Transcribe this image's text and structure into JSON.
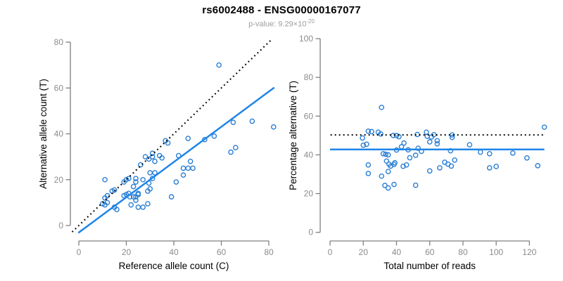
{
  "header": {
    "title": "rs6002488 - ENSG00000167077",
    "subtitle_prefix": "p-value: 9.29×10",
    "subtitle_exponent": "-20"
  },
  "colors": {
    "point": "#2b7fd4",
    "line": "#1f86e8",
    "identity": "#000000",
    "axis": "#808080",
    "tick_label": "#8c8c8c",
    "axis_title": "#000000",
    "title": "#000000",
    "subtitle": "#9c9c9c",
    "background": "#ffffff"
  },
  "chart_data": [
    {
      "type": "scatter",
      "name": "allele-count-scatter",
      "xlabel": "Reference allele count (C)",
      "ylabel": "Alternative allele count (T)",
      "xlim": [
        0,
        82
      ],
      "ylim": [
        0,
        82
      ],
      "xticks": [
        0,
        20,
        40,
        60,
        80
      ],
      "yticks": [
        0,
        20,
        40,
        60,
        80
      ],
      "grid": false,
      "lines": [
        {
          "name": "identity-line",
          "style": "dotted",
          "color": "#000000",
          "from": [
            -2.8,
            -2.8
          ],
          "to": [
            81.5,
            81.5
          ]
        },
        {
          "name": "regression-line",
          "style": "solid",
          "color": "#1f86e8",
          "from": [
            -0.2,
            -3.2
          ],
          "to": [
            82.3,
            60.2
          ]
        }
      ],
      "points": [
        [
          10,
          9.5
        ],
        [
          11,
          9
        ],
        [
          12,
          10
        ],
        [
          11,
          12
        ],
        [
          12,
          13
        ],
        [
          14,
          15
        ],
        [
          15,
          15.5
        ],
        [
          11,
          20
        ],
        [
          15,
          8
        ],
        [
          16,
          7
        ],
        [
          19,
          13
        ],
        [
          20,
          13.5
        ],
        [
          21,
          14
        ],
        [
          21.5,
          12.5
        ],
        [
          23,
          12.5
        ],
        [
          24,
          12.5
        ],
        [
          25,
          13.5
        ],
        [
          24,
          11
        ],
        [
          22,
          9
        ],
        [
          25,
          8
        ],
        [
          27,
          8
        ],
        [
          29,
          9.5
        ],
        [
          19,
          19
        ],
        [
          20,
          20
        ],
        [
          21,
          20.5
        ],
        [
          24,
          20.5
        ],
        [
          23,
          17
        ],
        [
          24,
          19
        ],
        [
          27,
          20
        ],
        [
          25,
          14
        ],
        [
          29,
          15
        ],
        [
          30,
          16
        ],
        [
          31,
          20.5
        ],
        [
          29.5,
          18.5
        ],
        [
          26,
          26.5
        ],
        [
          28,
          30
        ],
        [
          29.5,
          29
        ],
        [
          31,
          30
        ],
        [
          31,
          31.5
        ],
        [
          32,
          28
        ],
        [
          34,
          30.5
        ],
        [
          35,
          29.5
        ],
        [
          30,
          23
        ],
        [
          32,
          23
        ],
        [
          39,
          12.5
        ],
        [
          41,
          19
        ],
        [
          42,
          30.5
        ],
        [
          44,
          22
        ],
        [
          44,
          25
        ],
        [
          46,
          25
        ],
        [
          48,
          25
        ],
        [
          47,
          28
        ],
        [
          46,
          38
        ],
        [
          36.5,
          37
        ],
        [
          37.5,
          36
        ],
        [
          53,
          37.5
        ],
        [
          57,
          39
        ],
        [
          59,
          70
        ],
        [
          64,
          32
        ],
        [
          65,
          45
        ],
        [
          66,
          34
        ],
        [
          73,
          45.5
        ],
        [
          82,
          43
        ]
      ]
    },
    {
      "type": "scatter",
      "name": "percentage-vs-reads-scatter",
      "xlabel": "Total number of reads",
      "ylabel": "Percentage alternative (T)",
      "xlim": [
        0,
        129
      ],
      "ylim": [
        0,
        100
      ],
      "xticks": [
        0,
        20,
        40,
        60,
        80,
        100,
        120
      ],
      "yticks": [
        0,
        20,
        40,
        60,
        80,
        100
      ],
      "grid": false,
      "lines": [
        {
          "name": "expected-50pct-line",
          "style": "dotted",
          "color": "#000000",
          "from": [
            0.3,
            50.3
          ],
          "to": [
            128.5,
            50.3
          ]
        },
        {
          "name": "mean-percentage-line",
          "style": "solid",
          "color": "#1f86e8",
          "from": [
            0,
            42.8
          ],
          "to": [
            129,
            42.8
          ]
        }
      ],
      "points": [
        [
          19.5,
          48.7
        ],
        [
          20,
          45
        ],
        [
          22,
          45.5
        ],
        [
          23,
          52.2
        ],
        [
          25,
          52
        ],
        [
          29,
          51.7
        ],
        [
          30.5,
          50.8
        ],
        [
          31,
          64.5
        ],
        [
          23,
          34.8
        ],
        [
          23,
          30.4
        ],
        [
          32,
          40.6
        ],
        [
          33.5,
          40.3
        ],
        [
          35,
          40
        ],
        [
          34,
          36.8
        ],
        [
          35.5,
          35.2
        ],
        [
          36.5,
          34.2
        ],
        [
          38.5,
          35.1
        ],
        [
          35,
          31.4
        ],
        [
          31,
          29
        ],
        [
          33,
          24.2
        ],
        [
          35,
          22.9
        ],
        [
          38.5,
          24.7
        ],
        [
          38,
          50
        ],
        [
          40,
          50
        ],
        [
          41.5,
          49.4
        ],
        [
          44.5,
          46.1
        ],
        [
          40,
          42.5
        ],
        [
          43,
          44.2
        ],
        [
          47,
          42.6
        ],
        [
          39,
          35.9
        ],
        [
          44,
          34.1
        ],
        [
          46,
          34.8
        ],
        [
          51.5,
          39.8
        ],
        [
          48,
          38.5
        ],
        [
          52.5,
          50.5
        ],
        [
          58,
          51.7
        ],
        [
          58.5,
          49.6
        ],
        [
          61,
          49.2
        ],
        [
          62.5,
          50.4
        ],
        [
          60,
          46.7
        ],
        [
          64.5,
          47.3
        ],
        [
          64.5,
          45.7
        ],
        [
          53,
          43.4
        ],
        [
          55,
          41.8
        ],
        [
          51.5,
          24.3
        ],
        [
          60,
          31.7
        ],
        [
          72.5,
          42.1
        ],
        [
          66,
          33.3
        ],
        [
          69,
          36.2
        ],
        [
          71,
          35.2
        ],
        [
          73,
          34.2
        ],
        [
          75,
          37.3
        ],
        [
          84,
          45.2
        ],
        [
          73.5,
          50.3
        ],
        [
          73.5,
          49
        ],
        [
          90.5,
          41.4
        ],
        [
          96,
          40.6
        ],
        [
          129,
          54.3
        ],
        [
          96,
          33.3
        ],
        [
          110,
          40.9
        ],
        [
          100,
          34
        ],
        [
          118.5,
          38.4
        ],
        [
          125,
          34.4
        ]
      ]
    }
  ]
}
